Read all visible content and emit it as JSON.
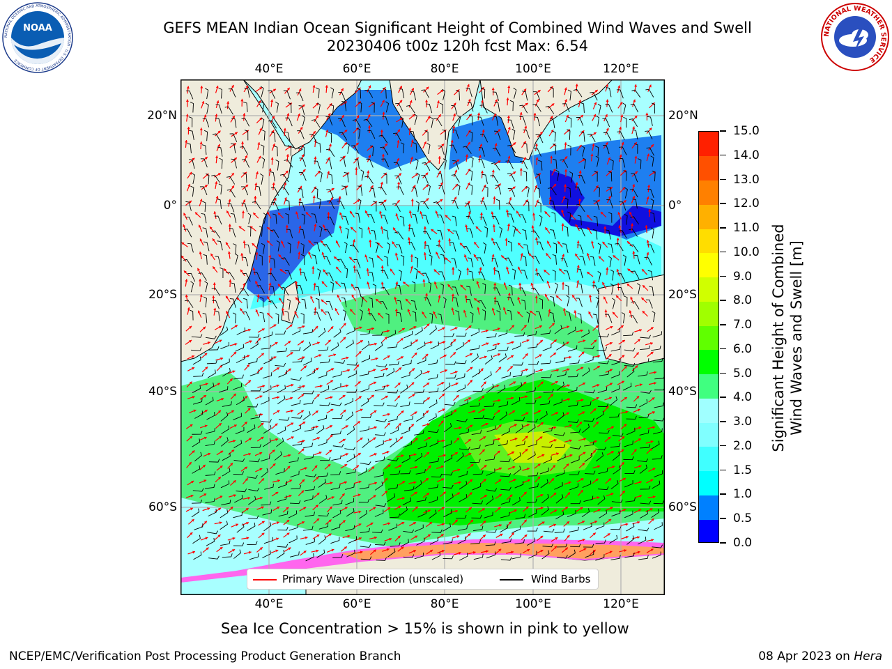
{
  "title_line1": "GEFS MEAN Indian Ocean Significant Height of Combined Wind Waves and Swell",
  "title_line2": "20230406 t00z 120h fcst   Max: 6.54",
  "lon_labels": [
    "40°E",
    "60°E",
    "80°E",
    "100°E",
    "120°E"
  ],
  "lat_labels": [
    "20°N",
    "0°",
    "20°S",
    "40°S",
    "60°S"
  ],
  "colorbar": {
    "title": "Significant Height of Combined\nWind Waves and Swell [m]",
    "tick_labels": [
      "0.0",
      "0.5",
      "1.0",
      "1.5",
      "2.0",
      "3.0",
      "4.0",
      "5.0",
      "6.0",
      "7.0",
      "8.0",
      "9.0",
      "10.0",
      "11.0",
      "12.0",
      "13.0",
      "14.0",
      "15.0"
    ],
    "colors": [
      "#0000ff",
      "#0080ff",
      "#00ffff",
      "#40ffff",
      "#80ffff",
      "#a0ffff",
      "#40ff80",
      "#00ff00",
      "#60ff00",
      "#a0ff00",
      "#d0ff00",
      "#ffff00",
      "#ffdd00",
      "#ffb000",
      "#ff8000",
      "#ff5000",
      "#ff2000"
    ]
  },
  "legend": {
    "wave_label": "Primary Wave Direction (unscaled)",
    "wave_color": "#ff0000",
    "barb_label": "Wind Barbs",
    "barb_color": "#000000"
  },
  "ice_note": "Sea Ice Concentration > 15% is shown in pink to yellow",
  "footer_left": "NCEP/EMC/Verification Post Processing Product Generation Branch",
  "footer_date": "08 Apr 2023 on ",
  "footer_host": "Hera",
  "noaa_logo_text": "NOAA",
  "noaa_ring_text": "NATIONAL OCEANIC AND ATMOSPHERIC ADMINISTRATION · U.S. DEPARTMENT OF COMMERCE",
  "nws_ring_text": "NATIONAL WEATHER SERVICE",
  "map_colors": {
    "land": "#efecdc",
    "ocean_low": "#a8ffff",
    "ice_pink": "#ff66ee",
    "ice_orange": "#ffa060",
    "grid": "#b0b0b0"
  }
}
